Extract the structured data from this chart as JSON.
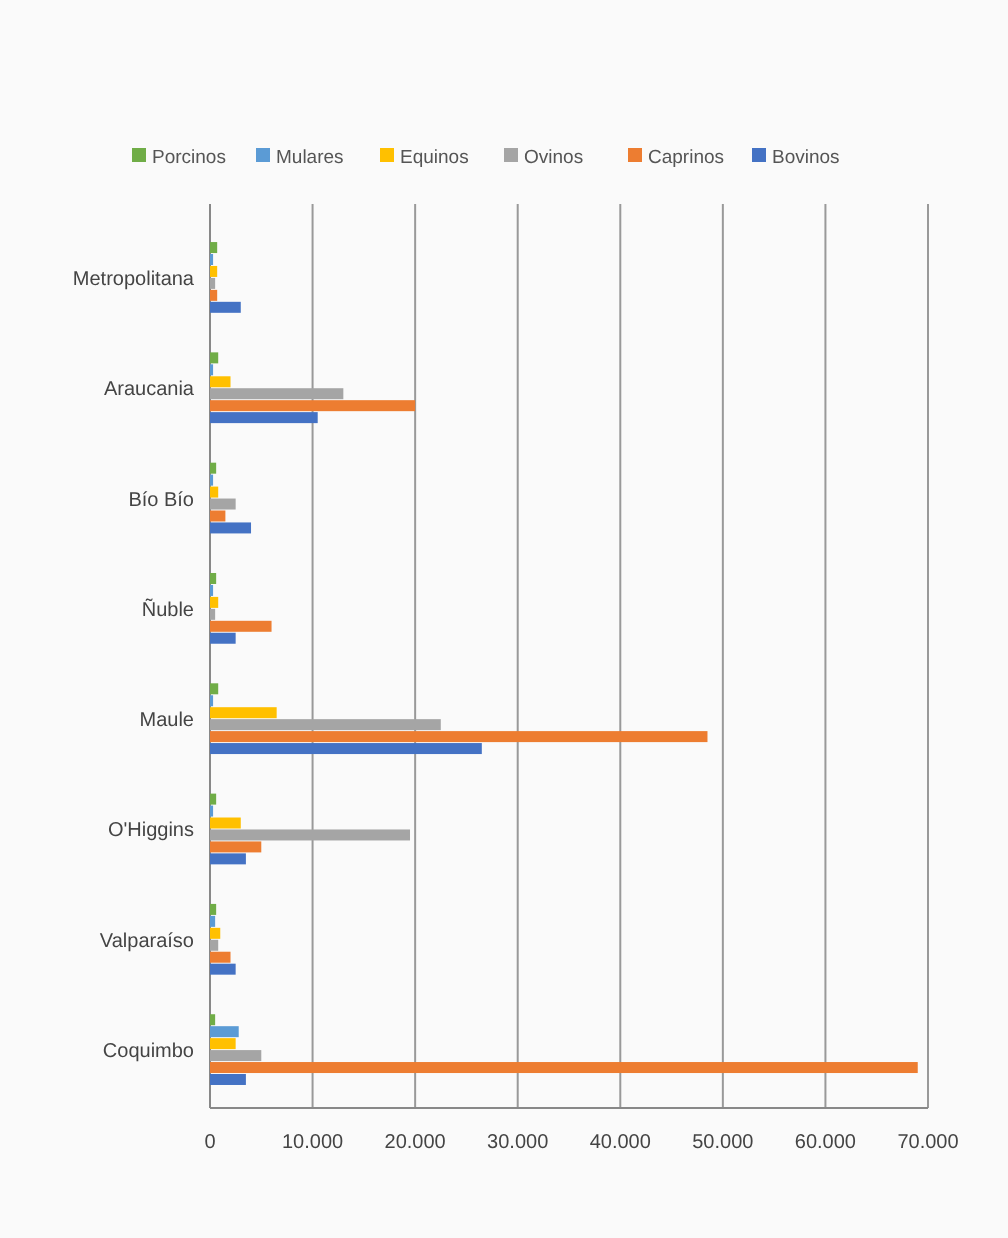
{
  "chart_data": {
    "type": "bar",
    "orientation": "horizontal",
    "categories": [
      "Metropolitana",
      "Araucania",
      "Bío Bío",
      "Ñuble",
      "Maule",
      "O'Higgins",
      "Valparaíso",
      "Coquimbo"
    ],
    "series": [
      {
        "name": "Porcinos",
        "color": "#70ad47",
        "values": [
          700,
          800,
          600,
          600,
          800,
          600,
          600,
          500
        ]
      },
      {
        "name": "Mulares",
        "color": "#5b9bd5",
        "values": [
          300,
          300,
          300,
          300,
          300,
          300,
          500,
          2800
        ]
      },
      {
        "name": "Equinos",
        "color": "#ffc000",
        "values": [
          700,
          2000,
          800,
          800,
          6500,
          3000,
          1000,
          2500
        ]
      },
      {
        "name": "Ovinos",
        "color": "#a5a5a5",
        "values": [
          500,
          13000,
          2500,
          500,
          22500,
          19500,
          800,
          5000
        ]
      },
      {
        "name": "Caprinos",
        "color": "#ed7d31",
        "values": [
          700,
          20000,
          1500,
          6000,
          48500,
          5000,
          2000,
          69000
        ]
      },
      {
        "name": "Bovinos",
        "color": "#4472c4",
        "values": [
          3000,
          10500,
          4000,
          2500,
          26500,
          3500,
          2500,
          3500
        ]
      }
    ],
    "xlim": [
      0,
      70000
    ],
    "xticks": [
      0,
      {
        "value": 10000,
        "label": "10.000"
      },
      {
        "value": 20000,
        "label": "20.000"
      },
      {
        "value": 30000,
        "label": "30.000"
      },
      {
        "value": 40000,
        "label": "40.000"
      },
      {
        "value": 50000,
        "label": "50.000"
      },
      {
        "value": 60000,
        "label": "60.000"
      },
      {
        "value": 70000,
        "label": "70.000"
      }
    ],
    "grid": "x",
    "legend": "top"
  }
}
